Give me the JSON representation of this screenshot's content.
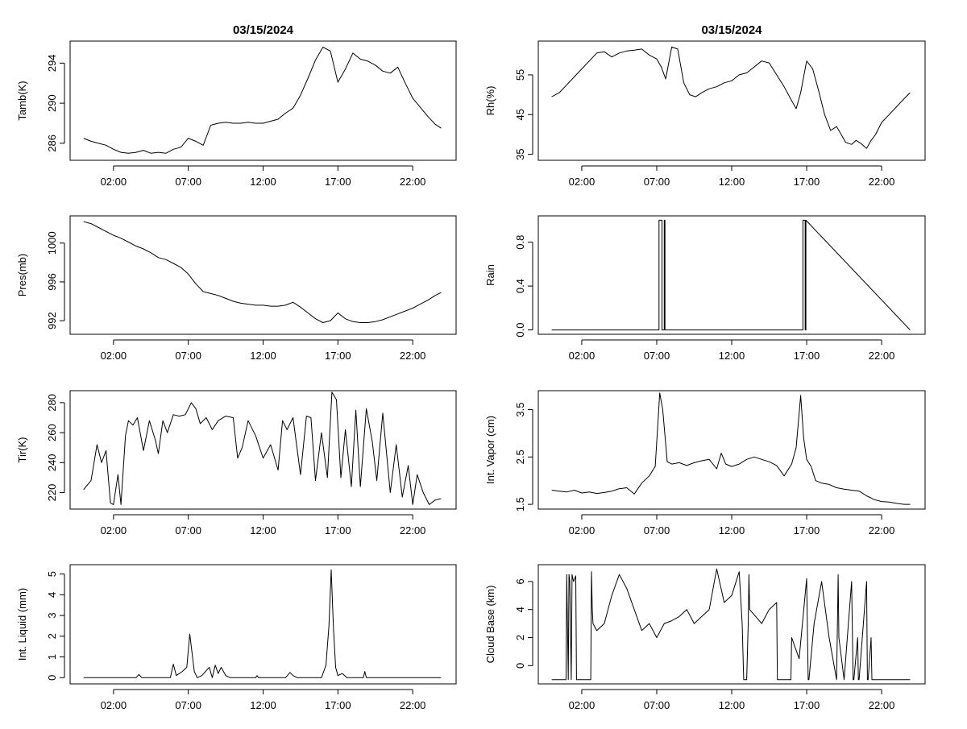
{
  "chart_data": [
    {
      "type": "line",
      "id": "tamb",
      "title": "03/15/2024",
      "ylabel": "Tamb(K)",
      "xlabel": "",
      "ylim": [
        284.3,
        296.2
      ],
      "yticks": [
        "286",
        "290",
        "294"
      ],
      "xticks": [
        "02:00",
        "07:00",
        "12:00",
        "17:00",
        "22:00"
      ],
      "xtick_hours": [
        2,
        7,
        12,
        17,
        22
      ],
      "xlim": [
        -0.9,
        24.9
      ],
      "series": [
        {
          "name": "Tamb",
          "x": [
            0,
            0.5,
            1,
            1.5,
            2,
            2.5,
            3,
            3.5,
            4,
            4.5,
            5,
            5.5,
            6,
            6.5,
            7,
            7.5,
            8,
            8.5,
            9,
            9.5,
            10,
            10.5,
            11,
            11.5,
            12,
            12.5,
            13,
            13.5,
            14,
            14.5,
            15,
            15.5,
            16,
            16.5,
            17,
            17.5,
            18,
            18.5,
            19,
            19.5,
            20,
            20.5,
            21,
            21.5,
            22,
            22.5,
            23,
            23.5,
            23.9
          ],
          "y": [
            286.5,
            286.2,
            286.0,
            285.8,
            285.4,
            285.1,
            285.0,
            285.1,
            285.3,
            285.0,
            285.1,
            285.0,
            285.4,
            285.6,
            286.5,
            286.2,
            285.8,
            287.8,
            288.0,
            288.1,
            288.0,
            288.0,
            288.1,
            288.0,
            288.0,
            288.2,
            288.4,
            289.0,
            289.5,
            290.8,
            292.5,
            294.3,
            295.6,
            295.2,
            292.1,
            293.4,
            295.0,
            294.4,
            294.2,
            293.8,
            293.2,
            293.0,
            293.6,
            292.0,
            290.5,
            289.6,
            288.7,
            287.9,
            287.5
          ]
        }
      ]
    },
    {
      "type": "line",
      "id": "rh",
      "title": "03/15/2024",
      "ylabel": "Rh(%)",
      "xlabel": "",
      "ylim": [
        33.5,
        63.5
      ],
      "yticks": [
        "35",
        "45",
        "55"
      ],
      "xticks": [
        "02:00",
        "07:00",
        "12:00",
        "17:00",
        "22:00"
      ],
      "xtick_hours": [
        2,
        7,
        12,
        17,
        22
      ],
      "xlim": [
        -0.9,
        24.9
      ],
      "series": [
        {
          "name": "Rh",
          "x": [
            0,
            0.5,
            1,
            1.5,
            2,
            2.5,
            3,
            3.5,
            4,
            4.5,
            5,
            5.5,
            6,
            6.5,
            7,
            7.3,
            7.6,
            8,
            8.4,
            8.8,
            9.2,
            9.6,
            10,
            10.5,
            11,
            11.5,
            12,
            12.5,
            13,
            13.5,
            14,
            14.5,
            15,
            15.5,
            16,
            16.3,
            16.6,
            17,
            17.4,
            17.8,
            18.2,
            18.6,
            19,
            19.3,
            19.6,
            20,
            20.3,
            20.6,
            21,
            21.3,
            21.6,
            22,
            22.5,
            23,
            23.5,
            23.9
          ],
          "y": [
            49.5,
            50.5,
            52.5,
            54.5,
            56.5,
            58.5,
            60.5,
            60.8,
            59.5,
            60.5,
            61,
            61.2,
            61.5,
            60,
            59,
            57,
            54,
            62,
            61.5,
            53,
            50,
            49.5,
            50.5,
            51.5,
            52,
            53,
            53.5,
            55,
            55.5,
            57,
            58.5,
            58,
            55,
            52,
            48.5,
            46.5,
            50.5,
            58.5,
            56.5,
            51,
            45,
            41,
            42,
            40,
            38,
            37.5,
            38.5,
            37.8,
            36.5,
            38.5,
            40,
            43,
            45,
            47,
            49,
            50.5
          ]
        }
      ]
    },
    {
      "type": "line",
      "id": "pres",
      "title": "",
      "ylabel": "Pres(mb)",
      "xlabel": "",
      "ylim": [
        990.6,
        1002.8
      ],
      "yticks": [
        "992",
        "996",
        "1000"
      ],
      "xticks": [
        "02:00",
        "07:00",
        "12:00",
        "17:00",
        "22:00"
      ],
      "xtick_hours": [
        2,
        7,
        12,
        17,
        22
      ],
      "xlim": [
        -0.9,
        24.9
      ],
      "series": [
        {
          "name": "Pres",
          "x": [
            0,
            0.5,
            1,
            1.5,
            2,
            2.5,
            3,
            3.5,
            4,
            4.5,
            5,
            5.5,
            6,
            6.5,
            7,
            7.5,
            8,
            8.5,
            9,
            9.5,
            10,
            10.5,
            11,
            11.5,
            12,
            12.5,
            13,
            13.5,
            14,
            14.5,
            15,
            15.5,
            16,
            16.5,
            17,
            17.5,
            18,
            18.5,
            19,
            19.5,
            20,
            20.5,
            21,
            21.5,
            22,
            22.5,
            23,
            23.5,
            23.9
          ],
          "y": [
            1002.2,
            1002.0,
            1001.6,
            1001.2,
            1000.8,
            1000.5,
            1000.1,
            999.7,
            999.4,
            999.0,
            998.5,
            998.3,
            997.9,
            997.5,
            996.8,
            995.8,
            995.0,
            994.8,
            994.6,
            994.3,
            994.0,
            993.8,
            993.7,
            993.6,
            993.6,
            993.5,
            993.5,
            993.6,
            993.9,
            993.4,
            992.8,
            992.2,
            991.8,
            992.0,
            992.8,
            992.2,
            991.9,
            991.8,
            991.8,
            991.9,
            992.1,
            992.4,
            992.7,
            993.0,
            993.3,
            993.7,
            994.1,
            994.6,
            994.9
          ]
        }
      ]
    },
    {
      "type": "line",
      "id": "rain",
      "title": "",
      "ylabel": "Rain",
      "xlabel": "",
      "ylim": [
        -0.04,
        1.04
      ],
      "yticks": [
        "0.0",
        "0.4",
        "0.8"
      ],
      "xticks": [
        "02:00",
        "07:00",
        "12:00",
        "17:00",
        "22:00"
      ],
      "xtick_hours": [
        2,
        7,
        12,
        17,
        22
      ],
      "xlim": [
        -0.9,
        24.9
      ],
      "series": [
        {
          "name": "Rain",
          "x": [
            0,
            7.15,
            7.15,
            7.35,
            7.35,
            7.5,
            7.5,
            7.55,
            7.55,
            16.75,
            16.75,
            16.9,
            16.9,
            16.95,
            16.95,
            23.9
          ],
          "y": [
            0,
            0,
            1,
            1,
            0,
            0,
            1,
            1,
            0,
            0,
            1,
            1,
            0,
            0,
            1,
            0
          ]
        }
      ]
    },
    {
      "type": "line",
      "id": "tir",
      "title": "",
      "ylabel": "Tir(K)",
      "xlabel": "",
      "ylim": [
        209,
        288
      ],
      "yticks": [
        "220",
        "240",
        "260",
        "280"
      ],
      "xticks": [
        "02:00",
        "07:00",
        "12:00",
        "17:00",
        "22:00"
      ],
      "xtick_hours": [
        2,
        7,
        12,
        17,
        22
      ],
      "xlim": [
        -0.9,
        24.9
      ],
      "series": [
        {
          "name": "Tir",
          "x": [
            0,
            0.5,
            0.9,
            1.2,
            1.5,
            1.8,
            2.0,
            2.3,
            2.5,
            2.8,
            3.0,
            3.3,
            3.6,
            4.0,
            4.4,
            4.8,
            5.0,
            5.3,
            5.6,
            6.0,
            6.4,
            6.8,
            7.2,
            7.5,
            7.8,
            8.2,
            8.6,
            9.0,
            9.5,
            10.0,
            10.3,
            10.6,
            11.0,
            11.5,
            12.0,
            12.5,
            13.0,
            13.3,
            13.6,
            14.0,
            14.5,
            14.9,
            15.2,
            15.5,
            15.9,
            16.3,
            16.6,
            16.9,
            17.2,
            17.5,
            17.9,
            18.2,
            18.5,
            18.9,
            19.3,
            19.6,
            20.0,
            20.5,
            20.9,
            21.3,
            21.7,
            22.0,
            22.3,
            22.7,
            23.1,
            23.5,
            23.9
          ],
          "y": [
            222,
            228,
            252,
            240,
            248,
            213,
            212,
            232,
            212,
            258,
            268,
            265,
            270,
            248,
            268,
            255,
            246,
            268,
            260,
            272,
            271,
            272,
            280,
            276,
            266,
            270,
            262,
            268,
            271,
            270,
            243,
            250,
            268,
            258,
            243,
            252,
            235,
            268,
            262,
            270,
            232,
            271,
            270,
            228,
            260,
            230,
            287,
            282,
            230,
            262,
            224,
            275,
            224,
            276,
            254,
            228,
            273,
            220,
            252,
            217,
            238,
            212,
            232,
            220,
            212,
            215,
            216
          ]
        }
      ]
    },
    {
      "type": "line",
      "id": "vapor",
      "title": "",
      "ylabel": "Int. Vapor (cm)",
      "xlabel": "",
      "ylim": [
        1.4,
        3.9
      ],
      "yticks": [
        "1.5",
        "2.5",
        "3.5"
      ],
      "xticks": [
        "02:00",
        "07:00",
        "12:00",
        "17:00",
        "22:00"
      ],
      "xtick_hours": [
        2,
        7,
        12,
        17,
        22
      ],
      "xlim": [
        -0.9,
        24.9
      ],
      "series": [
        {
          "name": "Vapor",
          "x": [
            0,
            0.5,
            1,
            1.5,
            2,
            2.5,
            3,
            3.5,
            4,
            4.5,
            5,
            5.5,
            6,
            6.5,
            6.9,
            7.2,
            7.4,
            7.7,
            8,
            8.5,
            9,
            9.5,
            10,
            10.5,
            11,
            11.3,
            11.6,
            12,
            12.5,
            13,
            13.5,
            14,
            14.5,
            15,
            15.5,
            16,
            16.3,
            16.6,
            16.8,
            17.0,
            17.3,
            17.6,
            18,
            18.5,
            19,
            19.5,
            20,
            20.5,
            21,
            21.5,
            22,
            22.5,
            23,
            23.5,
            23.9
          ],
          "y": [
            1.8,
            1.78,
            1.76,
            1.8,
            1.74,
            1.76,
            1.73,
            1.75,
            1.78,
            1.83,
            1.85,
            1.72,
            1.95,
            2.1,
            2.3,
            3.85,
            3.5,
            2.4,
            2.35,
            2.38,
            2.32,
            2.38,
            2.42,
            2.45,
            2.25,
            2.58,
            2.35,
            2.3,
            2.35,
            2.45,
            2.5,
            2.45,
            2.4,
            2.32,
            2.1,
            2.35,
            2.7,
            3.8,
            2.9,
            2.45,
            2.3,
            2.0,
            1.95,
            1.92,
            1.85,
            1.82,
            1.8,
            1.78,
            1.68,
            1.6,
            1.56,
            1.55,
            1.52,
            1.5,
            1.5
          ]
        }
      ]
    },
    {
      "type": "line",
      "id": "liquid",
      "title": "",
      "ylabel": "Int. Liquid (mm)",
      "xlabel": "",
      "ylim": [
        -0.3,
        5.45
      ],
      "yticks": [
        "0",
        "1",
        "2",
        "3",
        "4",
        "5"
      ],
      "xticks": [
        "02:00",
        "07:00",
        "12:00",
        "17:00",
        "22:00"
      ],
      "xtick_hours": [
        2,
        7,
        12,
        17,
        22
      ],
      "xlim": [
        -0.9,
        24.9
      ],
      "series": [
        {
          "name": "Liquid",
          "x": [
            0,
            3.5,
            3.7,
            3.9,
            5.8,
            6.0,
            6.2,
            6.6,
            6.9,
            7.1,
            7.25,
            7.4,
            7.6,
            7.9,
            8.4,
            8.6,
            8.8,
            9.0,
            9.2,
            9.5,
            9.8,
            11.5,
            11.6,
            11.7,
            13.5,
            13.8,
            14.0,
            14.3,
            15.9,
            16.2,
            16.4,
            16.55,
            16.7,
            16.85,
            17.0,
            17.3,
            17.6,
            18.7,
            18.8,
            18.9,
            23.9
          ],
          "y": [
            0,
            0,
            0.15,
            0,
            0,
            0.65,
            0.1,
            0.3,
            0.5,
            2.1,
            1.2,
            0.3,
            0,
            0.1,
            0.5,
            0,
            0.6,
            0.2,
            0.5,
            0.1,
            0,
            0,
            0.1,
            0,
            0,
            0.25,
            0.1,
            0,
            0,
            0.6,
            2.5,
            5.2,
            2.4,
            0.5,
            0.1,
            0.2,
            0,
            0,
            0.3,
            0,
            0
          ]
        }
      ]
    },
    {
      "type": "line",
      "id": "cloud",
      "title": "",
      "ylabel": "Cloud Base (km)",
      "xlabel": "",
      "ylim": [
        -1.3,
        7.2
      ],
      "yticks": [
        "0",
        "2",
        "4",
        "6"
      ],
      "xticks": [
        "02:00",
        "07:00",
        "12:00",
        "17:00",
        "22:00"
      ],
      "xtick_hours": [
        2,
        7,
        12,
        17,
        22
      ],
      "xlim": [
        -0.9,
        24.9
      ],
      "series": [
        {
          "name": "CloudBase",
          "x": [
            0,
            0.95,
            1.0,
            1.1,
            1.15,
            1.2,
            1.3,
            1.35,
            1.45,
            1.6,
            1.65,
            1.7,
            2.6,
            2.65,
            2.7,
            2.75,
            3.0,
            3.5,
            4.0,
            4.5,
            5.0,
            5.5,
            6.0,
            6.5,
            7.0,
            7.5,
            8.0,
            8.5,
            9.0,
            9.5,
            10.0,
            10.5,
            11.0,
            11.5,
            12.0,
            12.5,
            12.7,
            12.8,
            13.0,
            13.1,
            13.15,
            13.2,
            14.0,
            14.5,
            15.0,
            15.05,
            15.1,
            15.95,
            16.0,
            16.5,
            17.0,
            17.1,
            17.15,
            17.5,
            18.0,
            18.5,
            19.0,
            19.1,
            19.15,
            19.5,
            20.0,
            20.1,
            20.15,
            20.4,
            20.45,
            20.5,
            21.0,
            21.05,
            21.1,
            21.3,
            21.35,
            21.4,
            21.5,
            23.9
          ],
          "y": [
            -1,
            -1,
            6.5,
            -1,
            6.5,
            6.0,
            -1,
            6.5,
            6.0,
            6.4,
            -1,
            -1,
            -1,
            6.7,
            4.0,
            3.0,
            2.5,
            3.0,
            5.0,
            6.5,
            5.5,
            4.0,
            2.5,
            3.0,
            2.0,
            3.0,
            3.2,
            3.5,
            4.0,
            3.0,
            3.5,
            4.0,
            6.9,
            4.5,
            5.0,
            6.7,
            3.0,
            -1,
            -1,
            3.0,
            6.5,
            4.0,
            3.0,
            4.0,
            4.5,
            -1,
            -1,
            -1,
            2.0,
            0.5,
            6.2,
            -1,
            -1,
            3.0,
            6.0,
            2.0,
            -1,
            6.5,
            2.0,
            -1,
            6.0,
            -1,
            -1,
            2.0,
            -1,
            -1,
            6.0,
            -1,
            -1,
            2.0,
            -1,
            -1,
            -1,
            -1
          ]
        }
      ]
    }
  ]
}
